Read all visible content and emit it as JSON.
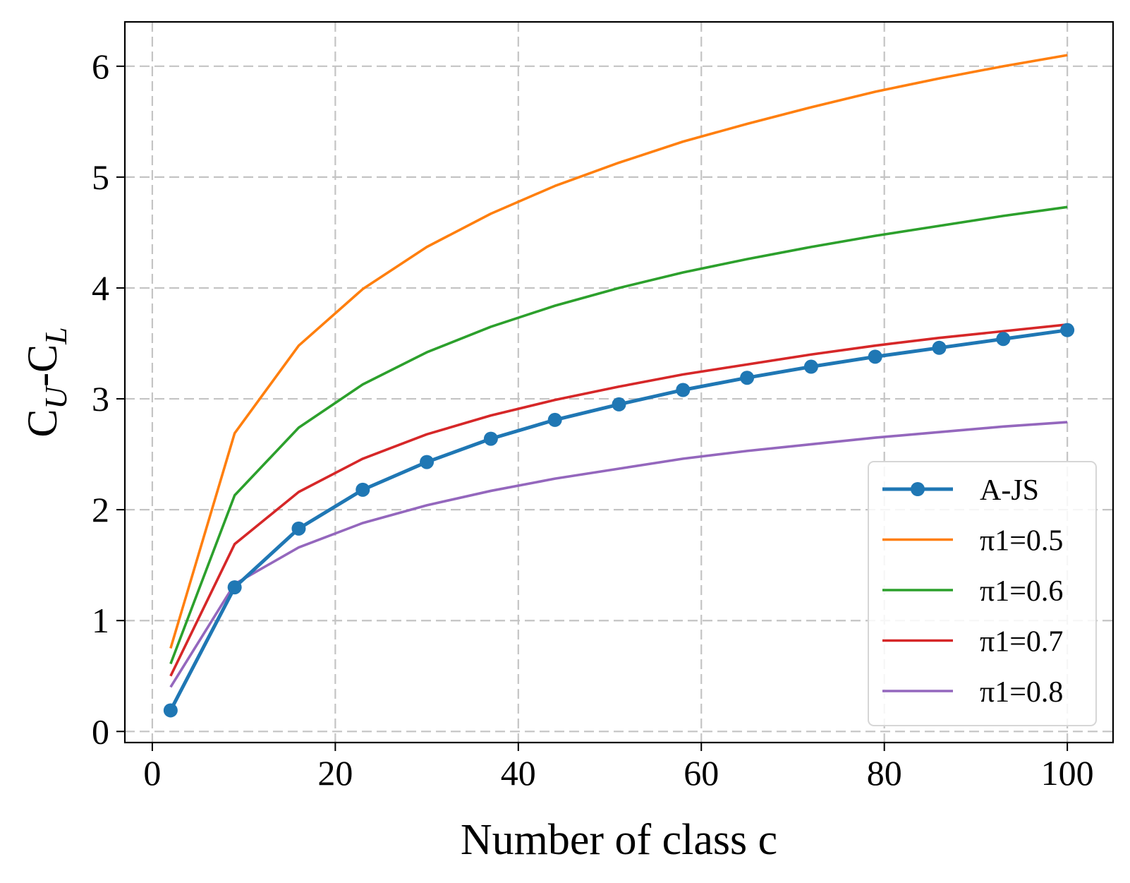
{
  "chart_data": {
    "type": "line",
    "title": "",
    "xlabel": "Number of class c",
    "ylabel": {
      "base": "C",
      "sub1": "U",
      "mid": "-C",
      "sub2": "L"
    },
    "xlim": [
      -3,
      105
    ],
    "ylim": [
      -0.1,
      6.4
    ],
    "xticks": [
      0,
      20,
      40,
      60,
      80,
      100
    ],
    "yticks": [
      0,
      1,
      2,
      3,
      4,
      5,
      6
    ],
    "grid": true,
    "grid_style": "dashed",
    "legend_position": "lower-right",
    "x": [
      2,
      9,
      16,
      23,
      30,
      37,
      44,
      51,
      58,
      65,
      72,
      79,
      86,
      93,
      100
    ],
    "series": [
      {
        "name": "A-JS",
        "color": "#1f77b4",
        "markers": true,
        "values": [
          0.19,
          1.3,
          1.83,
          2.18,
          2.43,
          2.64,
          2.81,
          2.95,
          3.08,
          3.19,
          3.29,
          3.38,
          3.46,
          3.54,
          3.62
        ]
      },
      {
        "name": "π1=0.5",
        "color": "#ff7f0e",
        "markers": false,
        "values": [
          0.75,
          2.69,
          3.48,
          3.99,
          4.37,
          4.67,
          4.92,
          5.13,
          5.32,
          5.48,
          5.63,
          5.77,
          5.89,
          6.0,
          6.1
        ]
      },
      {
        "name": "π1=0.6",
        "color": "#2ca02c",
        "markers": false,
        "values": [
          0.61,
          2.13,
          2.74,
          3.13,
          3.42,
          3.65,
          3.84,
          4.0,
          4.14,
          4.26,
          4.37,
          4.47,
          4.56,
          4.65,
          4.73
        ]
      },
      {
        "name": "π1=0.7",
        "color": "#d62728",
        "markers": false,
        "values": [
          0.5,
          1.69,
          2.16,
          2.46,
          2.68,
          2.85,
          2.99,
          3.11,
          3.22,
          3.31,
          3.4,
          3.48,
          3.55,
          3.61,
          3.67
        ]
      },
      {
        "name": "π1=0.8",
        "color": "#9467bd",
        "markers": false,
        "values": [
          0.4,
          1.33,
          1.66,
          1.88,
          2.04,
          2.17,
          2.28,
          2.37,
          2.46,
          2.53,
          2.59,
          2.65,
          2.7,
          2.75,
          2.79
        ]
      }
    ]
  }
}
